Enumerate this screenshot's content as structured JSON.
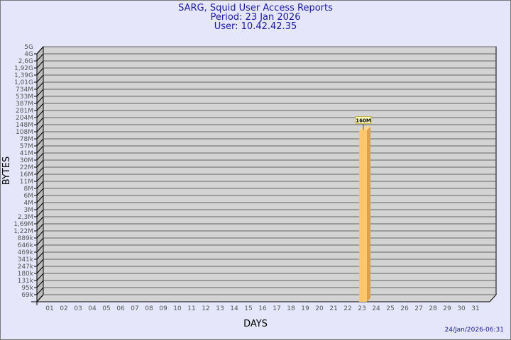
{
  "chart_data": {
    "type": "bar",
    "title": "SARG, Squid User Access Reports",
    "subtitle_period": "Period: 23 Jan 2026",
    "subtitle_user": "User: 10.42.42.35",
    "xlabel": "DAYS",
    "ylabel": "BYTES",
    "yscale": "log",
    "grid": true,
    "y_tick_labels": [
      "5G",
      "4G",
      "2,6G",
      "1,92G",
      "1,39G",
      "1,01G",
      "734M",
      "533M",
      "387M",
      "281M",
      "204M",
      "148M",
      "108M",
      "78M",
      "57M",
      "41M",
      "30M",
      "22M",
      "16M",
      "11M",
      "8M",
      "6M",
      "4M",
      "3M",
      "2,3M",
      "1,69M",
      "1,22M",
      "889k",
      "646k",
      "469k",
      "341k",
      "247k",
      "180k",
      "131k",
      "95k",
      "69k"
    ],
    "categories": [
      "01",
      "02",
      "03",
      "04",
      "05",
      "06",
      "07",
      "08",
      "09",
      "10",
      "11",
      "12",
      "13",
      "14",
      "15",
      "16",
      "17",
      "18",
      "19",
      "20",
      "21",
      "22",
      "23",
      "24",
      "25",
      "26",
      "27",
      "28",
      "29",
      "30",
      "31"
    ],
    "bars": [
      {
        "day": "23",
        "value_bytes": 160000000,
        "label": "160M"
      }
    ],
    "bar_color": "#ffc66b",
    "bar_side_color": "#dba24a",
    "plot_color": "#d3d3d3",
    "background_color": "#e6e6fa"
  },
  "timestamp": "24/Jan/2026-06:31"
}
